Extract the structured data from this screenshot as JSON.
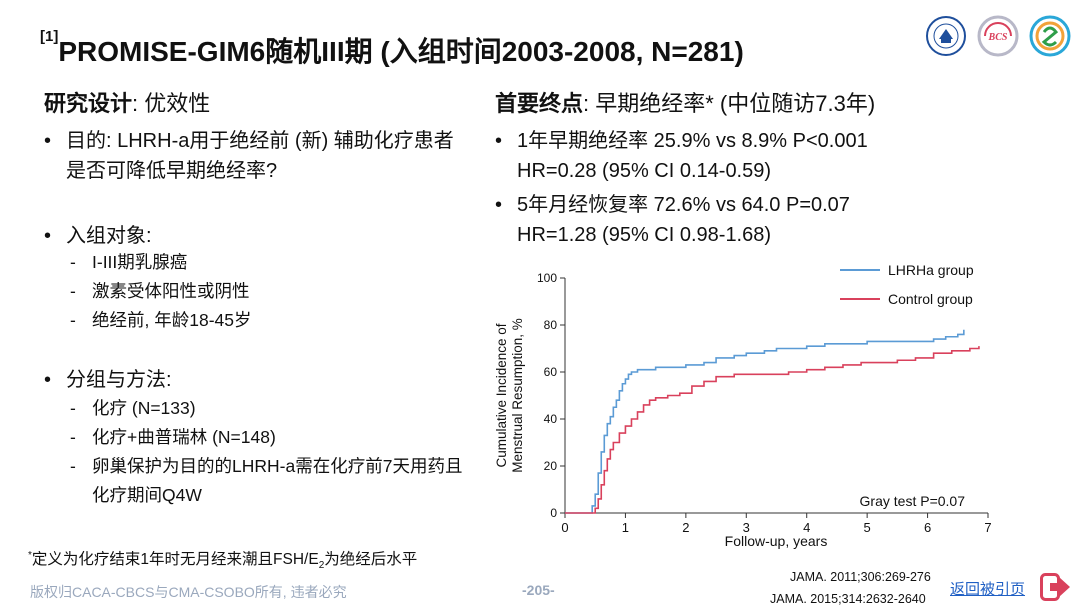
{
  "slide": {
    "title_sup": "[1]",
    "title": "PROMISE-GIM6随机III期 (入组时间2003-2008, N=281)"
  },
  "left": {
    "head_bold": "研究设计",
    "head_rest": ": 优效性",
    "bullets": [
      {
        "text": "目的: LHRH-a用于绝经前 (新) 辅助化疗患者是否可降低早期绝经率?"
      },
      {
        "text": "入组对象:"
      },
      {
        "text": "分组与方法:"
      }
    ],
    "subs_enroll": [
      "I-III期乳腺癌",
      "激素受体阳性或阴性",
      "绝经前, 年龄18-45岁"
    ],
    "subs_method": [
      "化疗 (N=133)",
      "化疗+曲普瑞林 (N=148)",
      "卵巢保护为目的的LHRH-a需在化疗前7天用药且化疗期间Q4W"
    ]
  },
  "right": {
    "head_bold": "首要终点",
    "head_rest": ": 早期绝经率* (中位随访7.3年)",
    "bullets": [
      {
        "line1": "1年早期绝经率 25.9% vs 8.9% P<0.001",
        "line2": "HR=0.28 (95% CI 0.14-0.59)"
      },
      {
        "line1": "5年月经恢复率 72.6% vs 64.0 P=0.07",
        "line2": "HR=1.28 (95% CI 0.98-1.68)"
      }
    ]
  },
  "footnote": {
    "star": "*",
    "pre": "定义为化疗结束1年时无月经来潮且FSH/E",
    "sub": "2",
    "post": "为绝经后水平"
  },
  "footer": {
    "copyright": "版权归CACA-CBCS与CMA-CSOBO所有, 违者必究",
    "page": "-205-",
    "ref1": "JAMA. 2011;306:269-276",
    "ref2": "JAMA. 2015;314:2632-2640",
    "back": "返回被引页"
  },
  "colors": {
    "lhrha": "#5b9bd5",
    "control": "#d9415c",
    "link": "#1f5fc4",
    "back_icon": "#d9415c"
  },
  "chart_data": {
    "type": "line",
    "title": "",
    "xlabel": "Follow-up, years",
    "ylabel": "Cumulative Incidence of Menstrual Resumption, %",
    "xlim": [
      0,
      7
    ],
    "ylim": [
      0,
      100
    ],
    "xticks": [
      0,
      1,
      2,
      3,
      4,
      5,
      6,
      7
    ],
    "yticks": [
      0,
      20,
      40,
      60,
      80,
      100
    ],
    "annotation": "Gray test P=0.07",
    "legend_position": "top-right",
    "series": [
      {
        "name": "LHRHa group",
        "color": "#5b9bd5",
        "x": [
          0,
          0.35,
          0.45,
          0.5,
          0.55,
          0.6,
          0.65,
          0.7,
          0.75,
          0.8,
          0.85,
          0.9,
          0.95,
          1.0,
          1.05,
          1.1,
          1.2,
          1.3,
          1.5,
          1.8,
          2.0,
          2.3,
          2.5,
          2.8,
          3.0,
          3.3,
          3.5,
          3.8,
          4.0,
          4.3,
          4.6,
          5.0,
          5.3,
          5.6,
          5.9,
          6.1,
          6.3,
          6.5,
          6.6
        ],
        "y": [
          0,
          0,
          3,
          8,
          17,
          26,
          33,
          38,
          41,
          45,
          48,
          52,
          55,
          57,
          59,
          60,
          61,
          61,
          62,
          62,
          63,
          64,
          66,
          67,
          68,
          69,
          70,
          70,
          71,
          72,
          72,
          73,
          73,
          73,
          73,
          74,
          75,
          76,
          78
        ]
      },
      {
        "name": "Control group",
        "color": "#d9415c",
        "x": [
          0,
          0.4,
          0.5,
          0.55,
          0.6,
          0.65,
          0.7,
          0.75,
          0.8,
          0.9,
          1.0,
          1.1,
          1.2,
          1.3,
          1.4,
          1.5,
          1.7,
          1.9,
          2.1,
          2.3,
          2.5,
          2.8,
          3.0,
          3.3,
          3.5,
          3.7,
          4.0,
          4.3,
          4.6,
          4.9,
          5.2,
          5.5,
          5.8,
          6.1,
          6.4,
          6.7,
          6.85
        ],
        "y": [
          0,
          0,
          2,
          6,
          12,
          18,
          23,
          27,
          30,
          34,
          37,
          40,
          43,
          46,
          48,
          49,
          50,
          51,
          54,
          56,
          58,
          59,
          59,
          59,
          59,
          60,
          61,
          62,
          63,
          64,
          64,
          65,
          66,
          68,
          69,
          70,
          71
        ]
      }
    ]
  }
}
